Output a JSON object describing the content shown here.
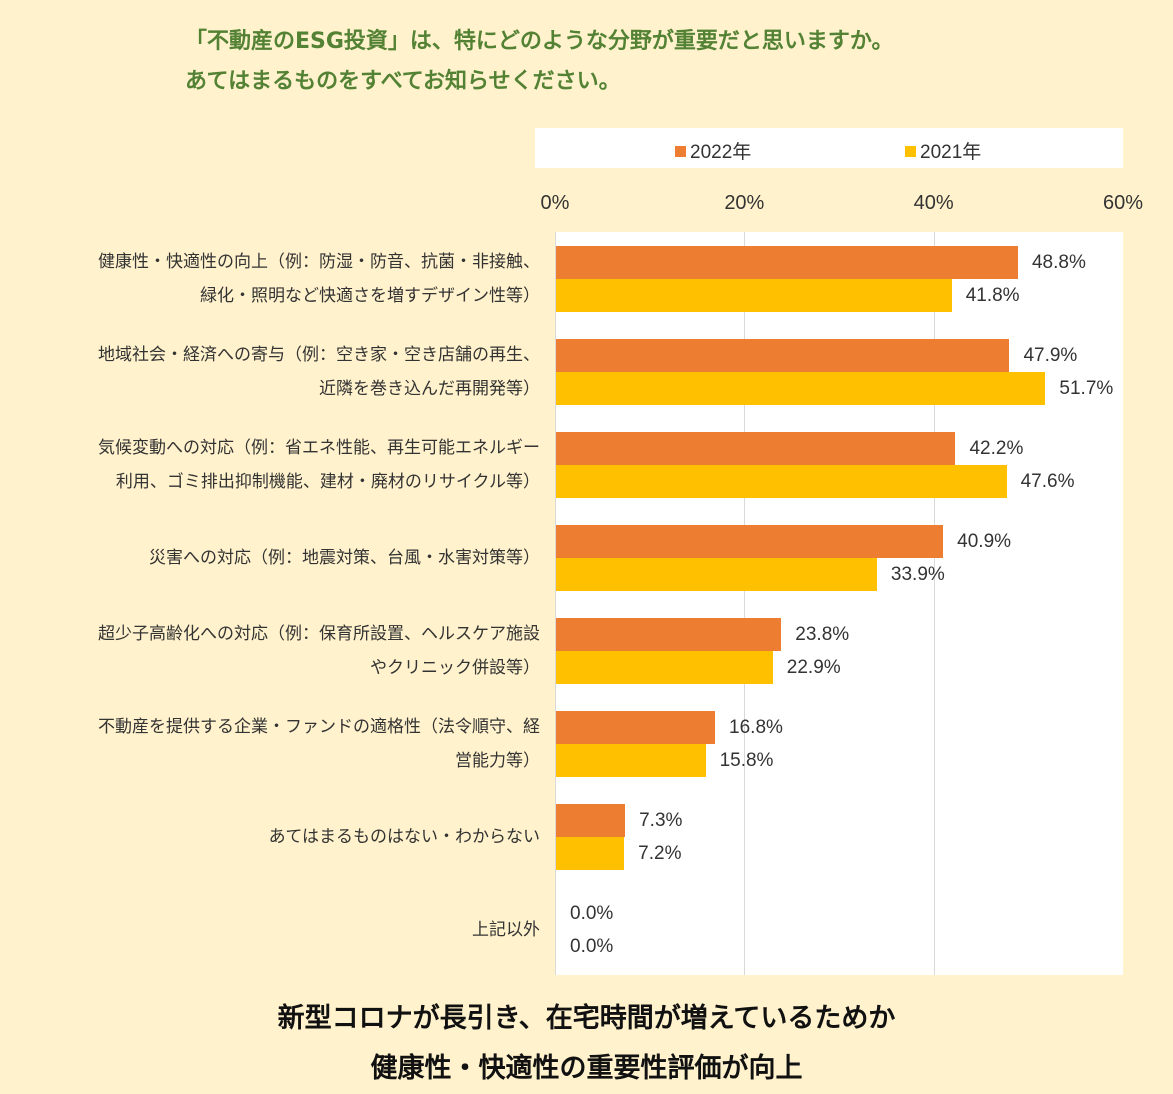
{
  "question": {
    "line1": "「不動産のESG投資」は、特にどのような分野が重要だと思いますか。",
    "line2": "あてはまるものをすべてお知らせください。"
  },
  "colors": {
    "series_2022": "#ed7d31",
    "series_2021": "#ffc000",
    "question_text": "#548235",
    "background": "#fff2cc"
  },
  "chart_data": {
    "type": "bar",
    "orientation": "horizontal",
    "xlim": [
      0,
      60
    ],
    "xticks": [
      "0%",
      "20%",
      "40%",
      "60%"
    ],
    "legend_position": "top",
    "grid": true,
    "categories": [
      [
        "健康性・快適性の向上（例：防湿・防音、抗菌・非接触、",
        "緑化・照明など快適さを増すデザイン性等）"
      ],
      [
        "地域社会・経済への寄与（例：空き家・空き店舗の再生、",
        "近隣を巻き込んだ再開発等）"
      ],
      [
        "気候変動への対応（例：省エネ性能、再生可能エネルギー",
        "利用、ゴミ排出抑制機能、建材・廃材のリサイクル等）"
      ],
      [
        "災害への対応（例：地震対策、台風・水害対策等）"
      ],
      [
        "超少子高齢化への対応（例：保育所設置、ヘルスケア施設",
        "やクリニック併設等）"
      ],
      [
        "不動産を提供する企業・ファンドの適格性（法令順守、経",
        "営能力等）"
      ],
      [
        "あてはまるものはない・わからない"
      ],
      [
        "上記以外"
      ]
    ],
    "series": [
      {
        "name": "2022年",
        "values": [
          48.8,
          47.9,
          42.2,
          40.9,
          23.8,
          16.8,
          7.3,
          0.0
        ],
        "labels": [
          "48.8%",
          "47.9%",
          "42.2%",
          "40.9%",
          "23.8%",
          "16.8%",
          "7.3%",
          "0.0%"
        ]
      },
      {
        "name": "2021年",
        "values": [
          41.8,
          51.7,
          47.6,
          33.9,
          22.9,
          15.8,
          7.2,
          0.0
        ],
        "labels": [
          "41.8%",
          "51.7%",
          "47.6%",
          "33.9%",
          "22.9%",
          "15.8%",
          "7.2%",
          "0.0%"
        ]
      }
    ]
  },
  "conclusion": {
    "line1": "新型コロナが長引き、在宅時間が増えているためか",
    "line2": "健康性・快適性の重要性評価が向上"
  }
}
